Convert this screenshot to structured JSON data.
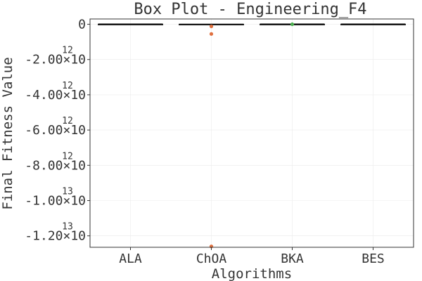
{
  "chart_data": {
    "type": "box",
    "title": "Box Plot - Engineering_F4",
    "xlabel": "Algorithms",
    "ylabel": "Final Fitness Value",
    "categories": [
      "ALA",
      "ChOA",
      "BKA",
      "BES"
    ],
    "ylim": [
      -12650000000000.0,
      300000000000.0
    ],
    "y_ticks": [
      {
        "value": 0,
        "label": "0",
        "exponent": ""
      },
      {
        "value": -2000000000000.0,
        "label": "-2.00×10",
        "exponent": "12"
      },
      {
        "value": -4000000000000.0,
        "label": "-4.00×10",
        "exponent": "12"
      },
      {
        "value": -6000000000000.0,
        "label": "-6.00×10",
        "exponent": "12"
      },
      {
        "value": -8000000000000.0,
        "label": "-8.00×10",
        "exponent": "12"
      },
      {
        "value": -10000000000000.0,
        "label": "-1.00×10",
        "exponent": "13"
      },
      {
        "value": -12000000000000.0,
        "label": "-1.20×10",
        "exponent": "13"
      }
    ],
    "series": [
      {
        "name": "ALA",
        "color": "#333333",
        "stats": {
          "min": 0,
          "q1": 0,
          "median": 0,
          "q3": 0,
          "max": 0
        },
        "outliers": []
      },
      {
        "name": "ChOA",
        "color": "#e0703f",
        "stats": {
          "min": -40000000000.0,
          "q1": -15000000000.0,
          "median": -10000000000.0,
          "q3": 0,
          "max": 0
        },
        "outliers": [
          -120000000000.0,
          -550000000000.0,
          -12600000000000.0
        ]
      },
      {
        "name": "BKA",
        "color": "#4caf50",
        "stats": {
          "min": 0,
          "q1": 0,
          "median": 0,
          "q3": 0,
          "max": 0
        },
        "outliers": [
          0
        ]
      },
      {
        "name": "BES",
        "color": "#333333",
        "stats": {
          "min": 0,
          "q1": 0,
          "median": 0,
          "q3": 0,
          "max": 0
        },
        "outliers": []
      }
    ],
    "grid": true,
    "legend": "none"
  }
}
